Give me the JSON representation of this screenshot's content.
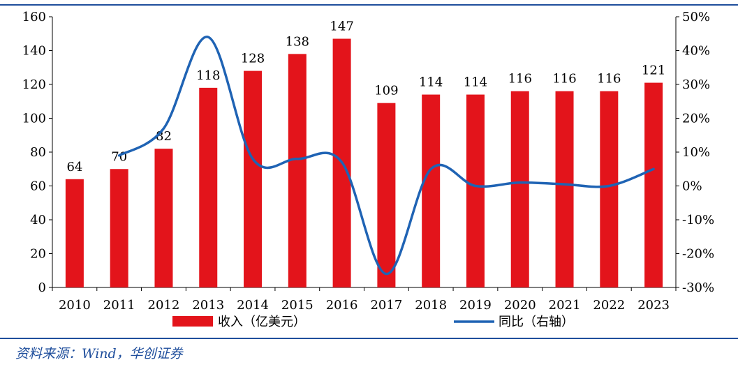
{
  "chart_data": {
    "type": "bar",
    "categories": [
      "2010",
      "2011",
      "2012",
      "2013",
      "2014",
      "2015",
      "2016",
      "2017",
      "2018",
      "2019",
      "2020",
      "2021",
      "2022",
      "2023"
    ],
    "series": [
      {
        "name": "收入（亿美元）",
        "type": "bar",
        "axis": "left",
        "color": "#e3141b",
        "values": [
          64,
          70,
          82,
          118,
          128,
          138,
          147,
          109,
          114,
          114,
          116,
          116,
          116,
          121
        ],
        "labels": [
          "64",
          "70",
          "82",
          "118",
          "128",
          "138",
          "147",
          "109",
          "114",
          "114",
          "116",
          "116",
          "116",
          "121"
        ]
      },
      {
        "name": "同比（右轴）",
        "type": "line",
        "axis": "right",
        "color": "#1f63b4",
        "values": [
          null,
          9,
          17,
          44,
          8,
          8,
          7,
          -26,
          5,
          0,
          1,
          0.5,
          0,
          5
        ]
      }
    ],
    "y_left": {
      "ylim": [
        0,
        160
      ],
      "ticks": [
        0,
        20,
        40,
        60,
        80,
        100,
        120,
        140,
        160
      ]
    },
    "y_right": {
      "ylim": [
        -30,
        50
      ],
      "ticks": [
        "-30%",
        "-20%",
        "-10%",
        "0%",
        "10%",
        "20%",
        "30%",
        "40%",
        "50%"
      ]
    },
    "grid": false,
    "legend": "bottom"
  },
  "source": "资料来源：Wind，华创证券"
}
